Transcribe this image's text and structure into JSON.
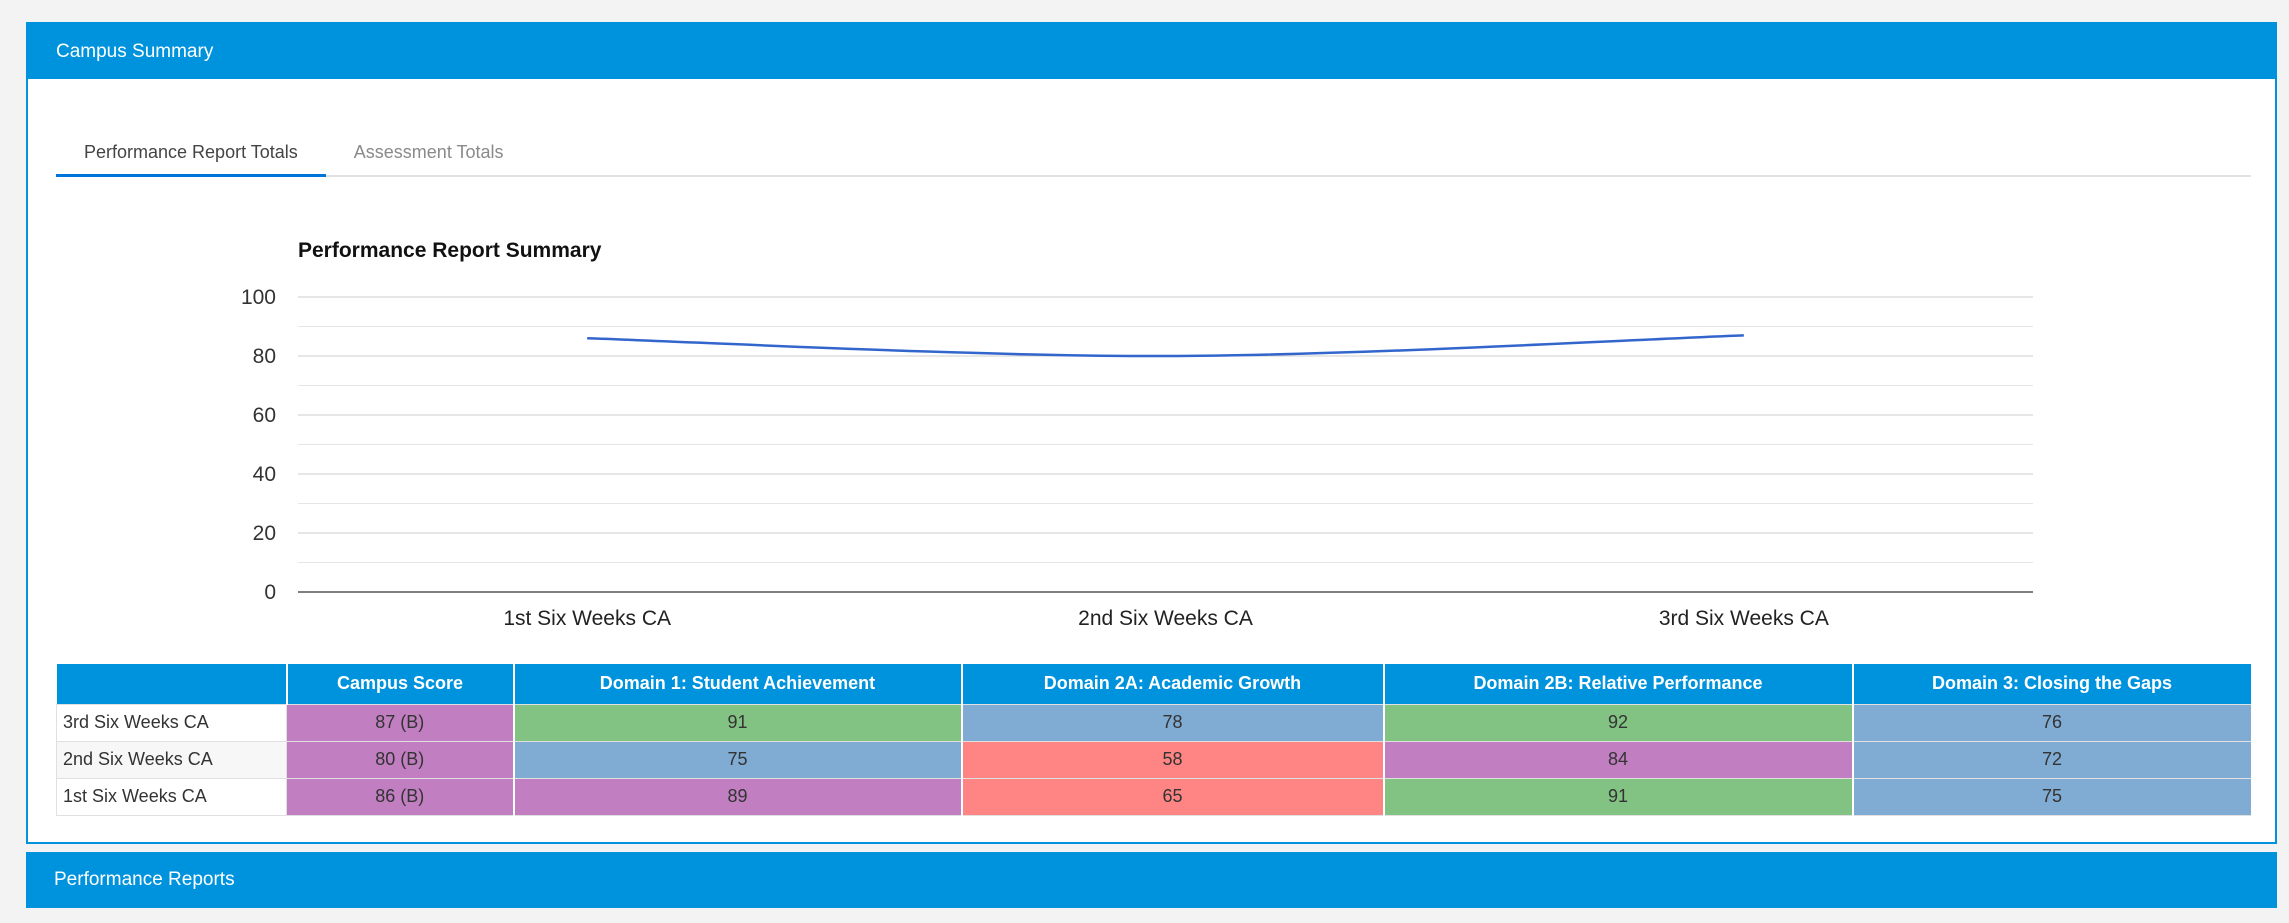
{
  "campus_panel": {
    "title": "Campus Summary"
  },
  "tabs": [
    {
      "label": "Performance Report Totals",
      "active": true
    },
    {
      "label": "Assessment Totals",
      "active": false
    }
  ],
  "chart_data": {
    "type": "line",
    "title": "Performance Report Summary",
    "categories": [
      "1st Six Weeks CA",
      "2nd Six Weeks CA",
      "3rd Six Weeks CA"
    ],
    "series": [
      {
        "values": [
          86,
          80,
          87
        ],
        "color": "#3366cc"
      }
    ],
    "ylim": [
      0,
      100
    ],
    "yticks": [
      "0",
      "20",
      "40",
      "60",
      "80",
      "100"
    ],
    "grid": true
  },
  "table": {
    "headers": [
      "",
      "Campus Score",
      "Domain 1: Student Achievement",
      "Domain 2A: Academic Growth",
      "Domain 2B: Relative Performance",
      "Domain 3: Closing the Gaps"
    ],
    "rows": [
      {
        "label": "3rd Six Weeks CA",
        "cells": [
          {
            "value": "87 (B)",
            "color": "#c17fc2"
          },
          {
            "value": "91",
            "color": "#82c282"
          },
          {
            "value": "78",
            "color": "#80abd2"
          },
          {
            "value": "92",
            "color": "#82c282"
          },
          {
            "value": "76",
            "color": "#80abd2"
          }
        ]
      },
      {
        "label": "2nd Six Weeks CA",
        "cells": [
          {
            "value": "80 (B)",
            "color": "#c17fc2"
          },
          {
            "value": "75",
            "color": "#80abd2"
          },
          {
            "value": "58",
            "color": "#ff8585"
          },
          {
            "value": "84",
            "color": "#c17fc2"
          },
          {
            "value": "72",
            "color": "#80abd2"
          }
        ]
      },
      {
        "label": "1st Six Weeks CA",
        "cells": [
          {
            "value": "86 (B)",
            "color": "#c17fc2"
          },
          {
            "value": "89",
            "color": "#c17fc2"
          },
          {
            "value": "65",
            "color": "#ff8585"
          },
          {
            "value": "91",
            "color": "#82c282"
          },
          {
            "value": "75",
            "color": "#80abd2"
          }
        ]
      }
    ]
  },
  "reports_panel": {
    "title": "Performance Reports"
  }
}
